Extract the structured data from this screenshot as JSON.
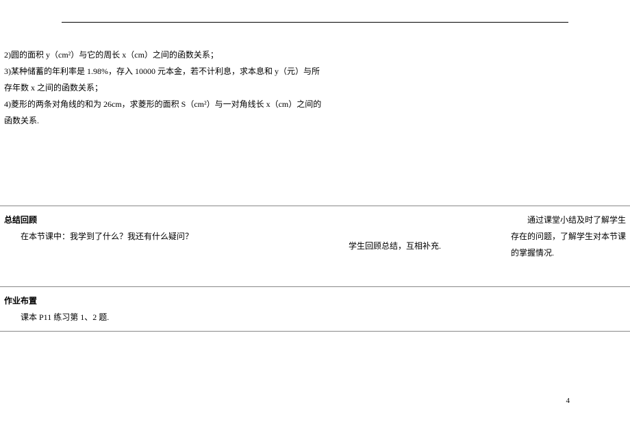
{
  "rows": [
    {
      "left_lines": [
        "2)圆的面积 y（cm²）与它的周长 x（cm）之间的函数关系；",
        "3)某种储蓄的年利率是 1.98%，存入 10000 元本金，若不计利息，求本息和 y（元）与所存年数 x 之间的函数关系；",
        "4)菱形的两条对角线的和为 26cm，求菱形的面积 S（cm²）与一对角线长 x（cm）之间的函数关系."
      ],
      "mid": "",
      "right": ""
    },
    {
      "left_heading": "总结回顾",
      "left_body": "在本节课中：我学到了什么？我还有什么疑问？",
      "mid": "学生回顾总结，互相补充.",
      "right": "通过课堂小结及时了解学生存在的问题，了解学生对本节课的掌握情况."
    },
    {
      "left_heading": "作业布置",
      "left_body": "课本 P11 练习第 1、2 题.",
      "mid": "",
      "right": ""
    }
  ],
  "page_number": "4",
  "colors": {
    "border": "#888888",
    "hr": "#000000",
    "text": "#000000",
    "bg": "#ffffff"
  }
}
